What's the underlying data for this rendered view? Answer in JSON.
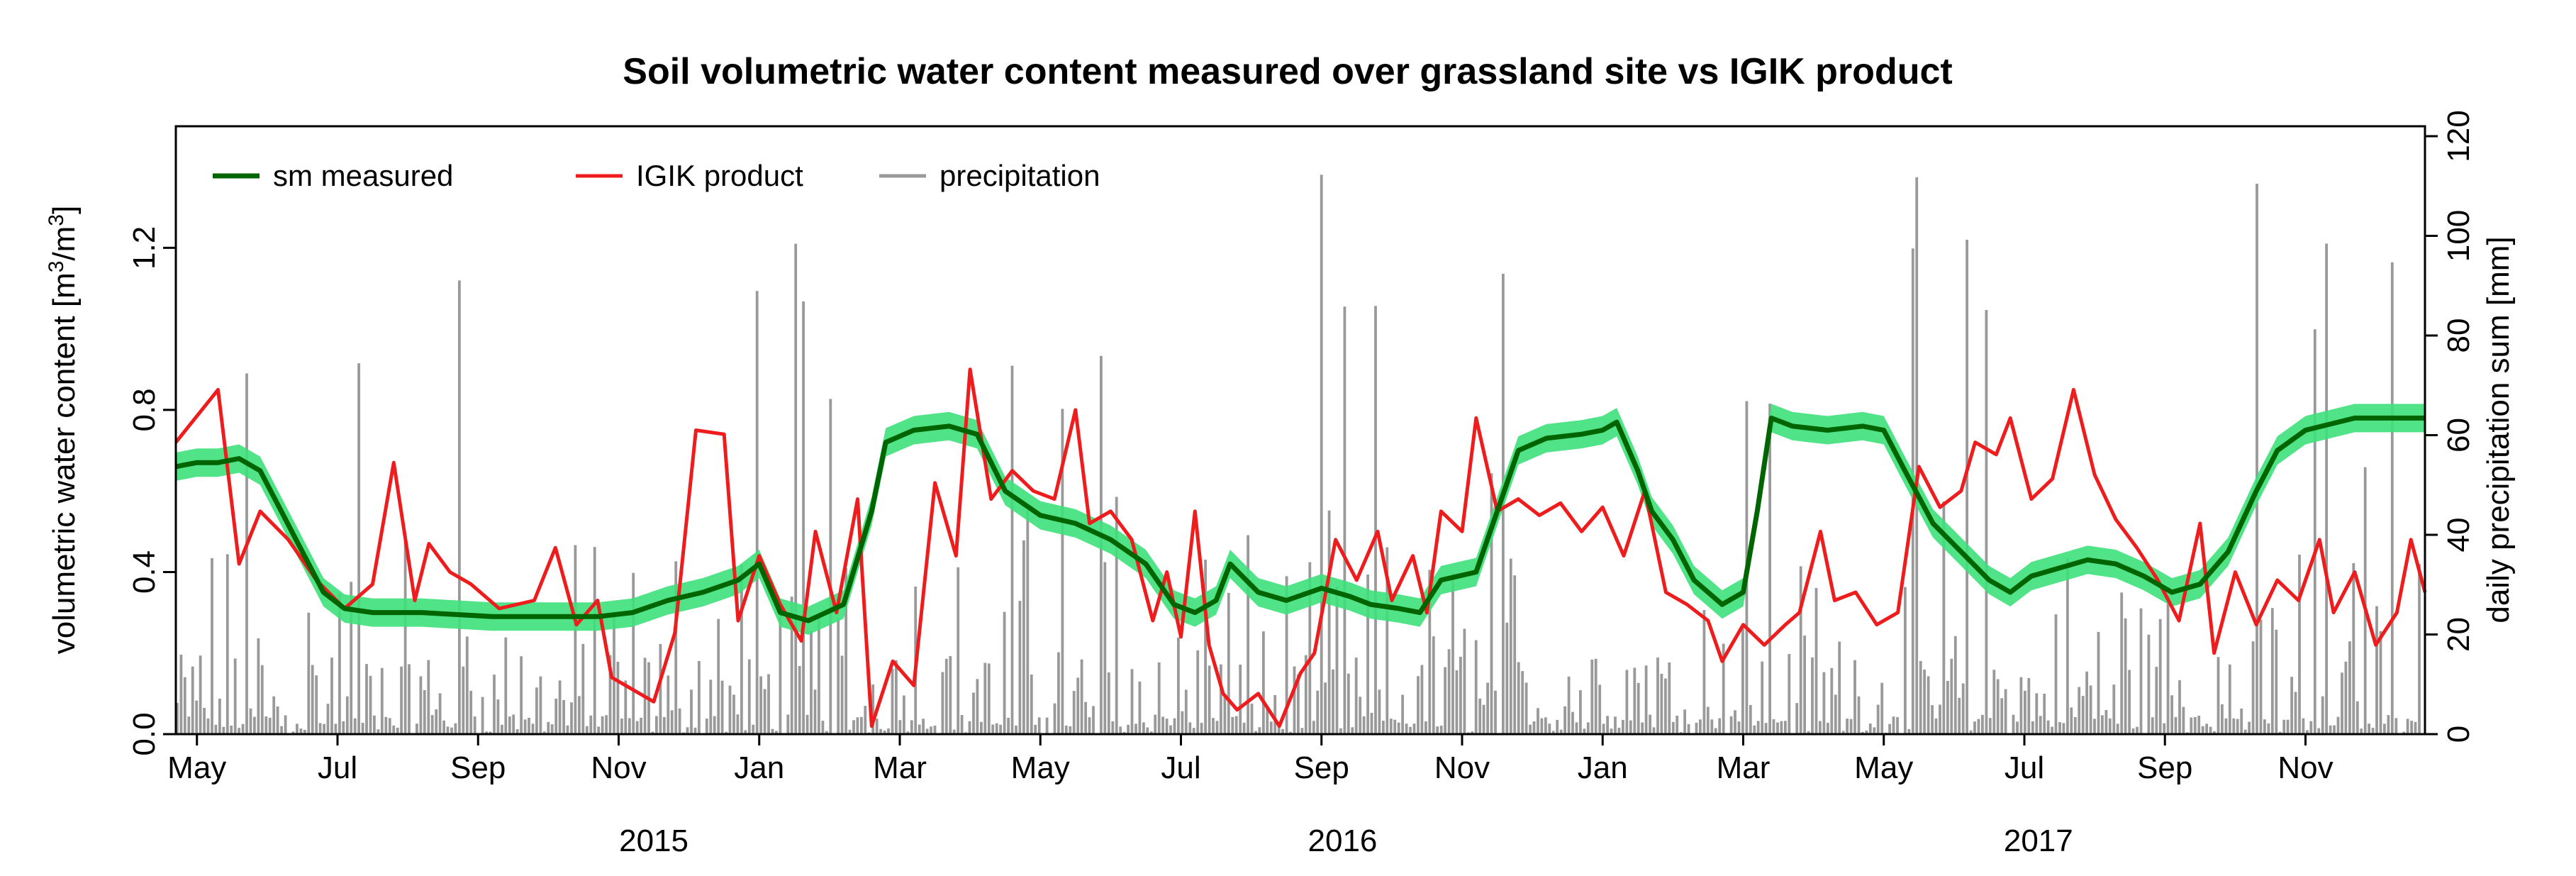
{
  "chart_data": {
    "type": "line",
    "title": "Soil volumetric water content measured over grassland site vs IGIK product",
    "ylabel": "volumetric water content [m³/m³]",
    "ylabel_parts": {
      "prefix": "volumetric water content [m",
      "sup1": "3",
      "mid": "/m",
      "sup2": "3",
      "suffix": "]"
    },
    "y2label": "daily precipitation sum [mm]",
    "ylim": [
      0,
      1.5
    ],
    "y2lim": [
      0,
      122
    ],
    "xlim_month_index": [
      0,
      32
    ],
    "y_ticks": [
      {
        "value": 0.0,
        "label": "0.0"
      },
      {
        "value": 0.4,
        "label": "0.4"
      },
      {
        "value": 0.8,
        "label": "0.8"
      },
      {
        "value": 1.2,
        "label": "1.2"
      }
    ],
    "y2_ticks": [
      {
        "value": 0,
        "label": "0"
      },
      {
        "value": 20,
        "label": "20"
      },
      {
        "value": 40,
        "label": "40"
      },
      {
        "value": 60,
        "label": "60"
      },
      {
        "value": 80,
        "label": "80"
      },
      {
        "value": 100,
        "label": "100"
      },
      {
        "value": 120,
        "label": "120"
      }
    ],
    "x_month_ticks": [
      {
        "index": 0.3,
        "label": "May"
      },
      {
        "index": 2.3,
        "label": "Jul"
      },
      {
        "index": 4.3,
        "label": "Sep"
      },
      {
        "index": 6.3,
        "label": "Nov"
      },
      {
        "index": 8.3,
        "label": "Jan"
      },
      {
        "index": 10.3,
        "label": "Mar"
      },
      {
        "index": 12.3,
        "label": "May"
      },
      {
        "index": 14.3,
        "label": "Jul"
      },
      {
        "index": 16.3,
        "label": "Sep"
      },
      {
        "index": 18.3,
        "label": "Nov"
      },
      {
        "index": 20.3,
        "label": "Jan"
      },
      {
        "index": 22.3,
        "label": "Mar"
      },
      {
        "index": 24.3,
        "label": "May"
      },
      {
        "index": 26.3,
        "label": "Jul"
      },
      {
        "index": 28.3,
        "label": "Sep"
      },
      {
        "index": 30.3,
        "label": "Nov"
      }
    ],
    "x_year_labels": [
      {
        "index": 6.8,
        "label": "2015"
      },
      {
        "index": 16.6,
        "label": "2016"
      },
      {
        "index": 26.5,
        "label": "2017"
      }
    ],
    "legend": {
      "placement": "top-left"
    },
    "series": [
      {
        "name": "sm measured",
        "color": "#006400",
        "band_color": "#3ee07a",
        "points": [
          [
            0,
            0.66
          ],
          [
            0.3,
            0.67
          ],
          [
            0.6,
            0.67
          ],
          [
            0.9,
            0.68
          ],
          [
            1.2,
            0.65
          ],
          [
            1.5,
            0.55
          ],
          [
            1.8,
            0.45
          ],
          [
            2.1,
            0.35
          ],
          [
            2.4,
            0.31
          ],
          [
            2.8,
            0.3
          ],
          [
            3.5,
            0.3
          ],
          [
            4.5,
            0.29
          ],
          [
            5.5,
            0.29
          ],
          [
            6.0,
            0.29
          ],
          [
            6.5,
            0.3
          ],
          [
            7.0,
            0.33
          ],
          [
            7.5,
            0.35
          ],
          [
            8.0,
            0.38
          ],
          [
            8.3,
            0.42
          ],
          [
            8.6,
            0.3
          ],
          [
            9.0,
            0.28
          ],
          [
            9.5,
            0.32
          ],
          [
            9.9,
            0.55
          ],
          [
            10.1,
            0.72
          ],
          [
            10.5,
            0.75
          ],
          [
            11.0,
            0.76
          ],
          [
            11.4,
            0.74
          ],
          [
            11.8,
            0.6
          ],
          [
            12.3,
            0.54
          ],
          [
            12.8,
            0.52
          ],
          [
            13.3,
            0.48
          ],
          [
            13.8,
            0.42
          ],
          [
            14.2,
            0.32
          ],
          [
            14.5,
            0.3
          ],
          [
            14.8,
            0.33
          ],
          [
            15.0,
            0.42
          ],
          [
            15.4,
            0.35
          ],
          [
            15.8,
            0.33
          ],
          [
            16.3,
            0.36
          ],
          [
            16.7,
            0.34
          ],
          [
            17.0,
            0.32
          ],
          [
            17.4,
            0.31
          ],
          [
            17.7,
            0.3
          ],
          [
            18.0,
            0.38
          ],
          [
            18.5,
            0.4
          ],
          [
            18.8,
            0.55
          ],
          [
            19.1,
            0.7
          ],
          [
            19.5,
            0.73
          ],
          [
            20.0,
            0.74
          ],
          [
            20.3,
            0.75
          ],
          [
            20.5,
            0.77
          ],
          [
            20.8,
            0.65
          ],
          [
            21.0,
            0.55
          ],
          [
            21.3,
            0.48
          ],
          [
            21.6,
            0.38
          ],
          [
            22.0,
            0.32
          ],
          [
            22.3,
            0.35
          ],
          [
            22.5,
            0.55
          ],
          [
            22.7,
            0.78
          ],
          [
            23.0,
            0.76
          ],
          [
            23.5,
            0.75
          ],
          [
            24.0,
            0.76
          ],
          [
            24.3,
            0.75
          ],
          [
            24.6,
            0.65
          ],
          [
            25.0,
            0.52
          ],
          [
            25.4,
            0.45
          ],
          [
            25.8,
            0.38
          ],
          [
            26.1,
            0.35
          ],
          [
            26.4,
            0.39
          ],
          [
            26.8,
            0.41
          ],
          [
            27.2,
            0.43
          ],
          [
            27.6,
            0.42
          ],
          [
            28.0,
            0.39
          ],
          [
            28.4,
            0.35
          ],
          [
            28.8,
            0.37
          ],
          [
            29.2,
            0.45
          ],
          [
            29.6,
            0.6
          ],
          [
            29.9,
            0.7
          ],
          [
            30.3,
            0.75
          ],
          [
            31.0,
            0.78
          ],
          [
            31.5,
            0.78
          ],
          [
            32.0,
            0.78
          ]
        ]
      },
      {
        "name": "IGIK product",
        "color": "#ee1c1c",
        "points": [
          [
            0,
            0.72
          ],
          [
            0.6,
            0.85
          ],
          [
            0.9,
            0.42
          ],
          [
            1.2,
            0.55
          ],
          [
            1.6,
            0.48
          ],
          [
            2.0,
            0.38
          ],
          [
            2.4,
            0.31
          ],
          [
            2.8,
            0.37
          ],
          [
            3.1,
            0.67
          ],
          [
            3.4,
            0.33
          ],
          [
            3.6,
            0.47
          ],
          [
            3.9,
            0.4
          ],
          [
            4.2,
            0.37
          ],
          [
            4.6,
            0.31
          ],
          [
            5.1,
            0.33
          ],
          [
            5.4,
            0.46
          ],
          [
            5.7,
            0.27
          ],
          [
            6.0,
            0.33
          ],
          [
            6.2,
            0.14
          ],
          [
            6.8,
            0.08
          ],
          [
            7.1,
            0.25
          ],
          [
            7.4,
            0.75
          ],
          [
            7.8,
            0.74
          ],
          [
            8.0,
            0.28
          ],
          [
            8.3,
            0.44
          ],
          [
            8.6,
            0.32
          ],
          [
            8.9,
            0.23
          ],
          [
            9.1,
            0.5
          ],
          [
            9.4,
            0.3
          ],
          [
            9.7,
            0.58
          ],
          [
            9.9,
            0.02
          ],
          [
            10.2,
            0.18
          ],
          [
            10.5,
            0.12
          ],
          [
            10.8,
            0.62
          ],
          [
            11.1,
            0.44
          ],
          [
            11.3,
            0.9
          ],
          [
            11.6,
            0.58
          ],
          [
            11.9,
            0.65
          ],
          [
            12.2,
            0.6
          ],
          [
            12.5,
            0.58
          ],
          [
            12.8,
            0.8
          ],
          [
            13.0,
            0.52
          ],
          [
            13.3,
            0.55
          ],
          [
            13.6,
            0.48
          ],
          [
            13.9,
            0.28
          ],
          [
            14.1,
            0.4
          ],
          [
            14.3,
            0.24
          ],
          [
            14.5,
            0.55
          ],
          [
            14.7,
            0.22
          ],
          [
            14.9,
            0.1
          ],
          [
            15.1,
            0.06
          ],
          [
            15.4,
            0.1
          ],
          [
            15.7,
            0.02
          ],
          [
            16.0,
            0.15
          ],
          [
            16.2,
            0.2
          ],
          [
            16.5,
            0.48
          ],
          [
            16.8,
            0.38
          ],
          [
            17.1,
            0.5
          ],
          [
            17.3,
            0.33
          ],
          [
            17.6,
            0.44
          ],
          [
            17.8,
            0.3
          ],
          [
            18.0,
            0.55
          ],
          [
            18.3,
            0.5
          ],
          [
            18.5,
            0.78
          ],
          [
            18.8,
            0.55
          ],
          [
            19.1,
            0.58
          ],
          [
            19.4,
            0.54
          ],
          [
            19.7,
            0.57
          ],
          [
            20.0,
            0.5
          ],
          [
            20.3,
            0.56
          ],
          [
            20.6,
            0.44
          ],
          [
            20.9,
            0.6
          ],
          [
            21.2,
            0.35
          ],
          [
            21.5,
            0.32
          ],
          [
            21.8,
            0.28
          ],
          [
            22.0,
            0.18
          ],
          [
            22.3,
            0.27
          ],
          [
            22.6,
            0.22
          ],
          [
            22.9,
            0.27
          ],
          [
            23.1,
            0.3
          ],
          [
            23.4,
            0.5
          ],
          [
            23.6,
            0.33
          ],
          [
            23.9,
            0.35
          ],
          [
            24.2,
            0.27
          ],
          [
            24.5,
            0.3
          ],
          [
            24.8,
            0.66
          ],
          [
            25.1,
            0.56
          ],
          [
            25.4,
            0.6
          ],
          [
            25.6,
            0.72
          ],
          [
            25.9,
            0.69
          ],
          [
            26.1,
            0.78
          ],
          [
            26.4,
            0.58
          ],
          [
            26.7,
            0.63
          ],
          [
            27.0,
            0.85
          ],
          [
            27.3,
            0.64
          ],
          [
            27.6,
            0.53
          ],
          [
            27.9,
            0.46
          ],
          [
            28.2,
            0.38
          ],
          [
            28.5,
            0.28
          ],
          [
            28.8,
            0.52
          ],
          [
            29.0,
            0.2
          ],
          [
            29.3,
            0.4
          ],
          [
            29.6,
            0.27
          ],
          [
            29.9,
            0.38
          ],
          [
            30.2,
            0.33
          ],
          [
            30.5,
            0.48
          ],
          [
            30.7,
            0.3
          ],
          [
            31.0,
            0.4
          ],
          [
            31.3,
            0.22
          ],
          [
            31.6,
            0.3
          ],
          [
            31.8,
            0.48
          ],
          [
            32.0,
            0.35
          ]
        ]
      },
      {
        "name": "precipitation",
        "color": "#999999",
        "axis": "right",
        "bar_width_month": 0.055
      }
    ]
  }
}
